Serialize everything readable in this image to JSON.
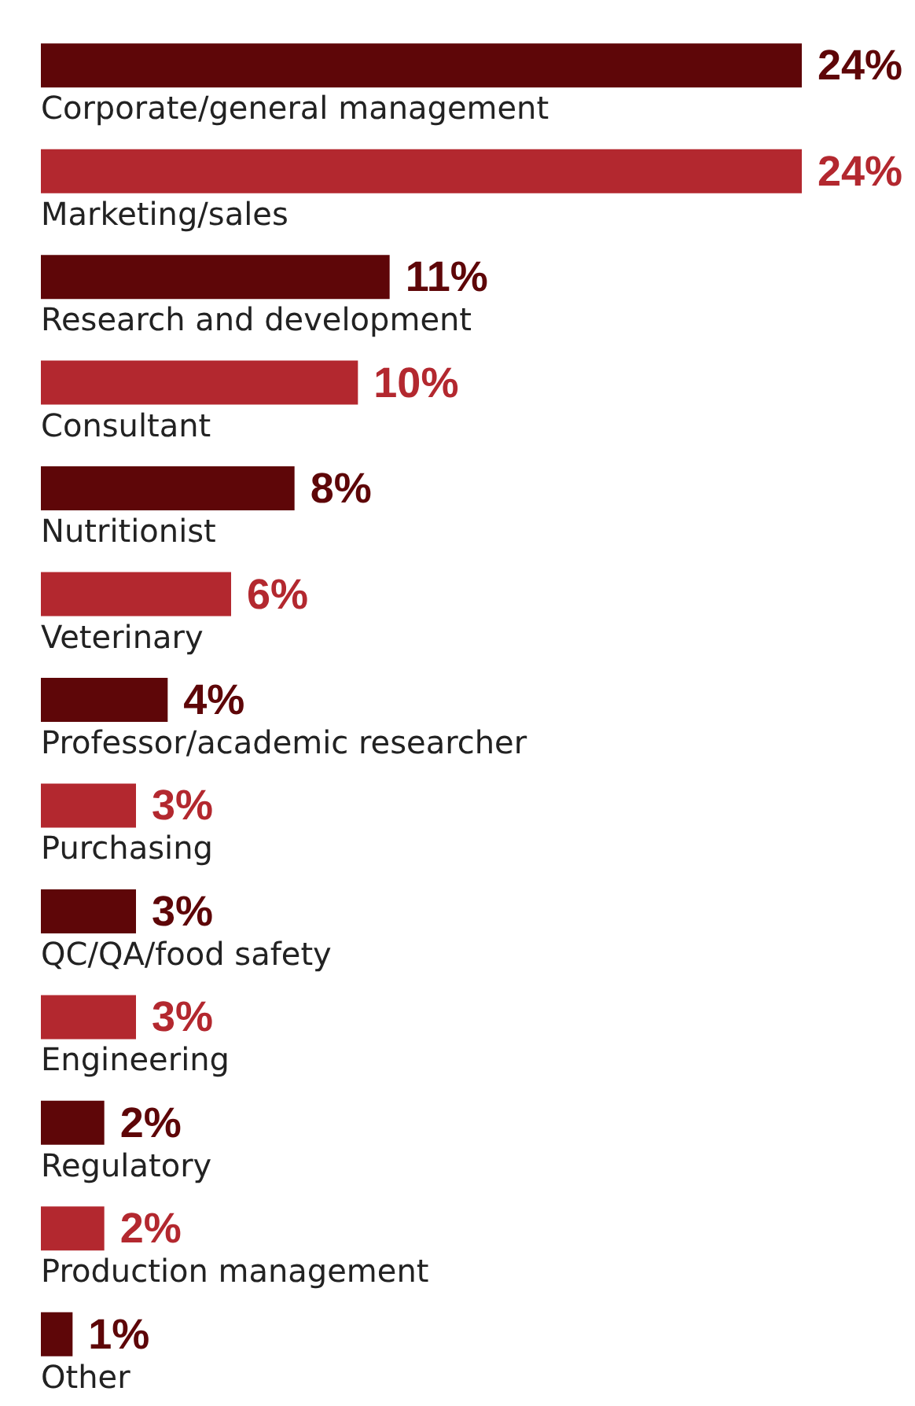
{
  "chart_data": {
    "type": "bar",
    "orientation": "horizontal",
    "tick_labels": "y",
    "categories": [
      "Corporate/general management",
      "Marketing/sales",
      "Research and development",
      "Consultant",
      "Nutritionist",
      "Veterinary",
      "Professor/academic researcher",
      "Purchasing",
      "QC/QA/food safety",
      "Engineering",
      "Regulatory",
      "Production management",
      "Other"
    ],
    "values": [
      24,
      24,
      11,
      10,
      8,
      6,
      4,
      3,
      3,
      3,
      2,
      2,
      1
    ],
    "value_labels": [
      "24%",
      "24%",
      "11%",
      "10%",
      "8%",
      "6%",
      "4%",
      "3%",
      "3%",
      "3%",
      "2%",
      "2%",
      "1%"
    ],
    "colors": [
      "#5e0608",
      "#b3282f",
      "#5e0608",
      "#b3282f",
      "#5e0608",
      "#b3282f",
      "#5e0608",
      "#b3282f",
      "#5e0608",
      "#b3282f",
      "#5e0608",
      "#b3282f",
      "#5e0608"
    ]
  }
}
